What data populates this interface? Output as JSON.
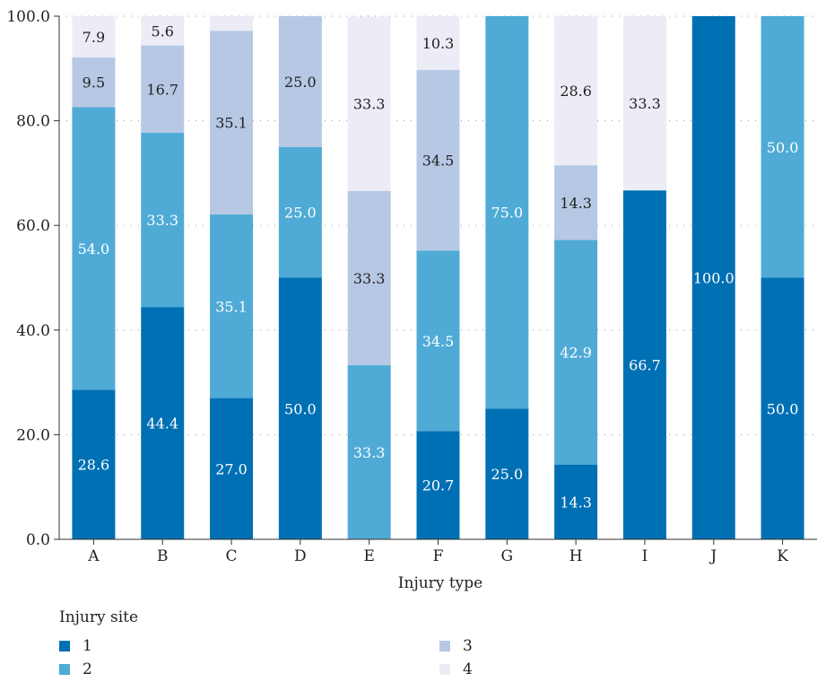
{
  "chart_data": {
    "type": "bar",
    "stacked": true,
    "categories": [
      "A",
      "B",
      "C",
      "D",
      "E",
      "F",
      "G",
      "H",
      "I",
      "J",
      "K"
    ],
    "xlabel": "Injury type",
    "ylabel": "",
    "ylim": [
      0,
      100
    ],
    "yticks": [
      "0.0",
      "20.0",
      "40.0",
      "60.0",
      "80.0",
      "100.0"
    ],
    "grid": "dotted horizontal",
    "legend_title": "Injury site",
    "legend_placement": "bottom",
    "series": [
      {
        "name": "1",
        "color": "#0070b4",
        "values": [
          28.6,
          44.4,
          27.0,
          50.0,
          0,
          20.7,
          25.0,
          14.3,
          66.7,
          100.0,
          50.0
        ],
        "labels": [
          "28.6",
          "44.4",
          "27.0",
          "50.0",
          "",
          "20.7",
          "25.0",
          "14.3",
          "66.7",
          "100.0",
          "50.0"
        ]
      },
      {
        "name": "2",
        "color": "#4fabd6",
        "values": [
          54.0,
          33.3,
          35.1,
          25.0,
          33.3,
          34.5,
          75.0,
          42.9,
          0,
          0,
          50.0
        ],
        "labels": [
          "54.0",
          "33.3",
          "35.1",
          "25.0",
          "33.3",
          "34.5",
          "75.0",
          "42.9",
          "",
          "",
          "50.0"
        ]
      },
      {
        "name": "3",
        "color": "#b6c8e4",
        "values": [
          9.5,
          16.7,
          35.1,
          25.0,
          33.3,
          34.5,
          0,
          14.3,
          0,
          0,
          0
        ],
        "labels": [
          "9.5",
          "16.7",
          "35.1",
          "25.0",
          "33.3",
          "34.5",
          "",
          "14.3",
          "",
          "",
          ""
        ]
      },
      {
        "name": "4",
        "color": "#ececf6",
        "values": [
          7.9,
          5.6,
          2.8,
          0,
          33.3,
          10.3,
          0,
          28.6,
          33.3,
          0,
          0
        ],
        "labels": [
          "7.9",
          "5.6",
          "",
          "",
          "33.3",
          "10.3",
          "",
          "28.6",
          "33.3",
          "",
          ""
        ]
      }
    ],
    "label_text_colors": {
      "1": "#ffffff",
      "2": "#ffffff",
      "3": "#222222",
      "4": "#222222"
    }
  }
}
